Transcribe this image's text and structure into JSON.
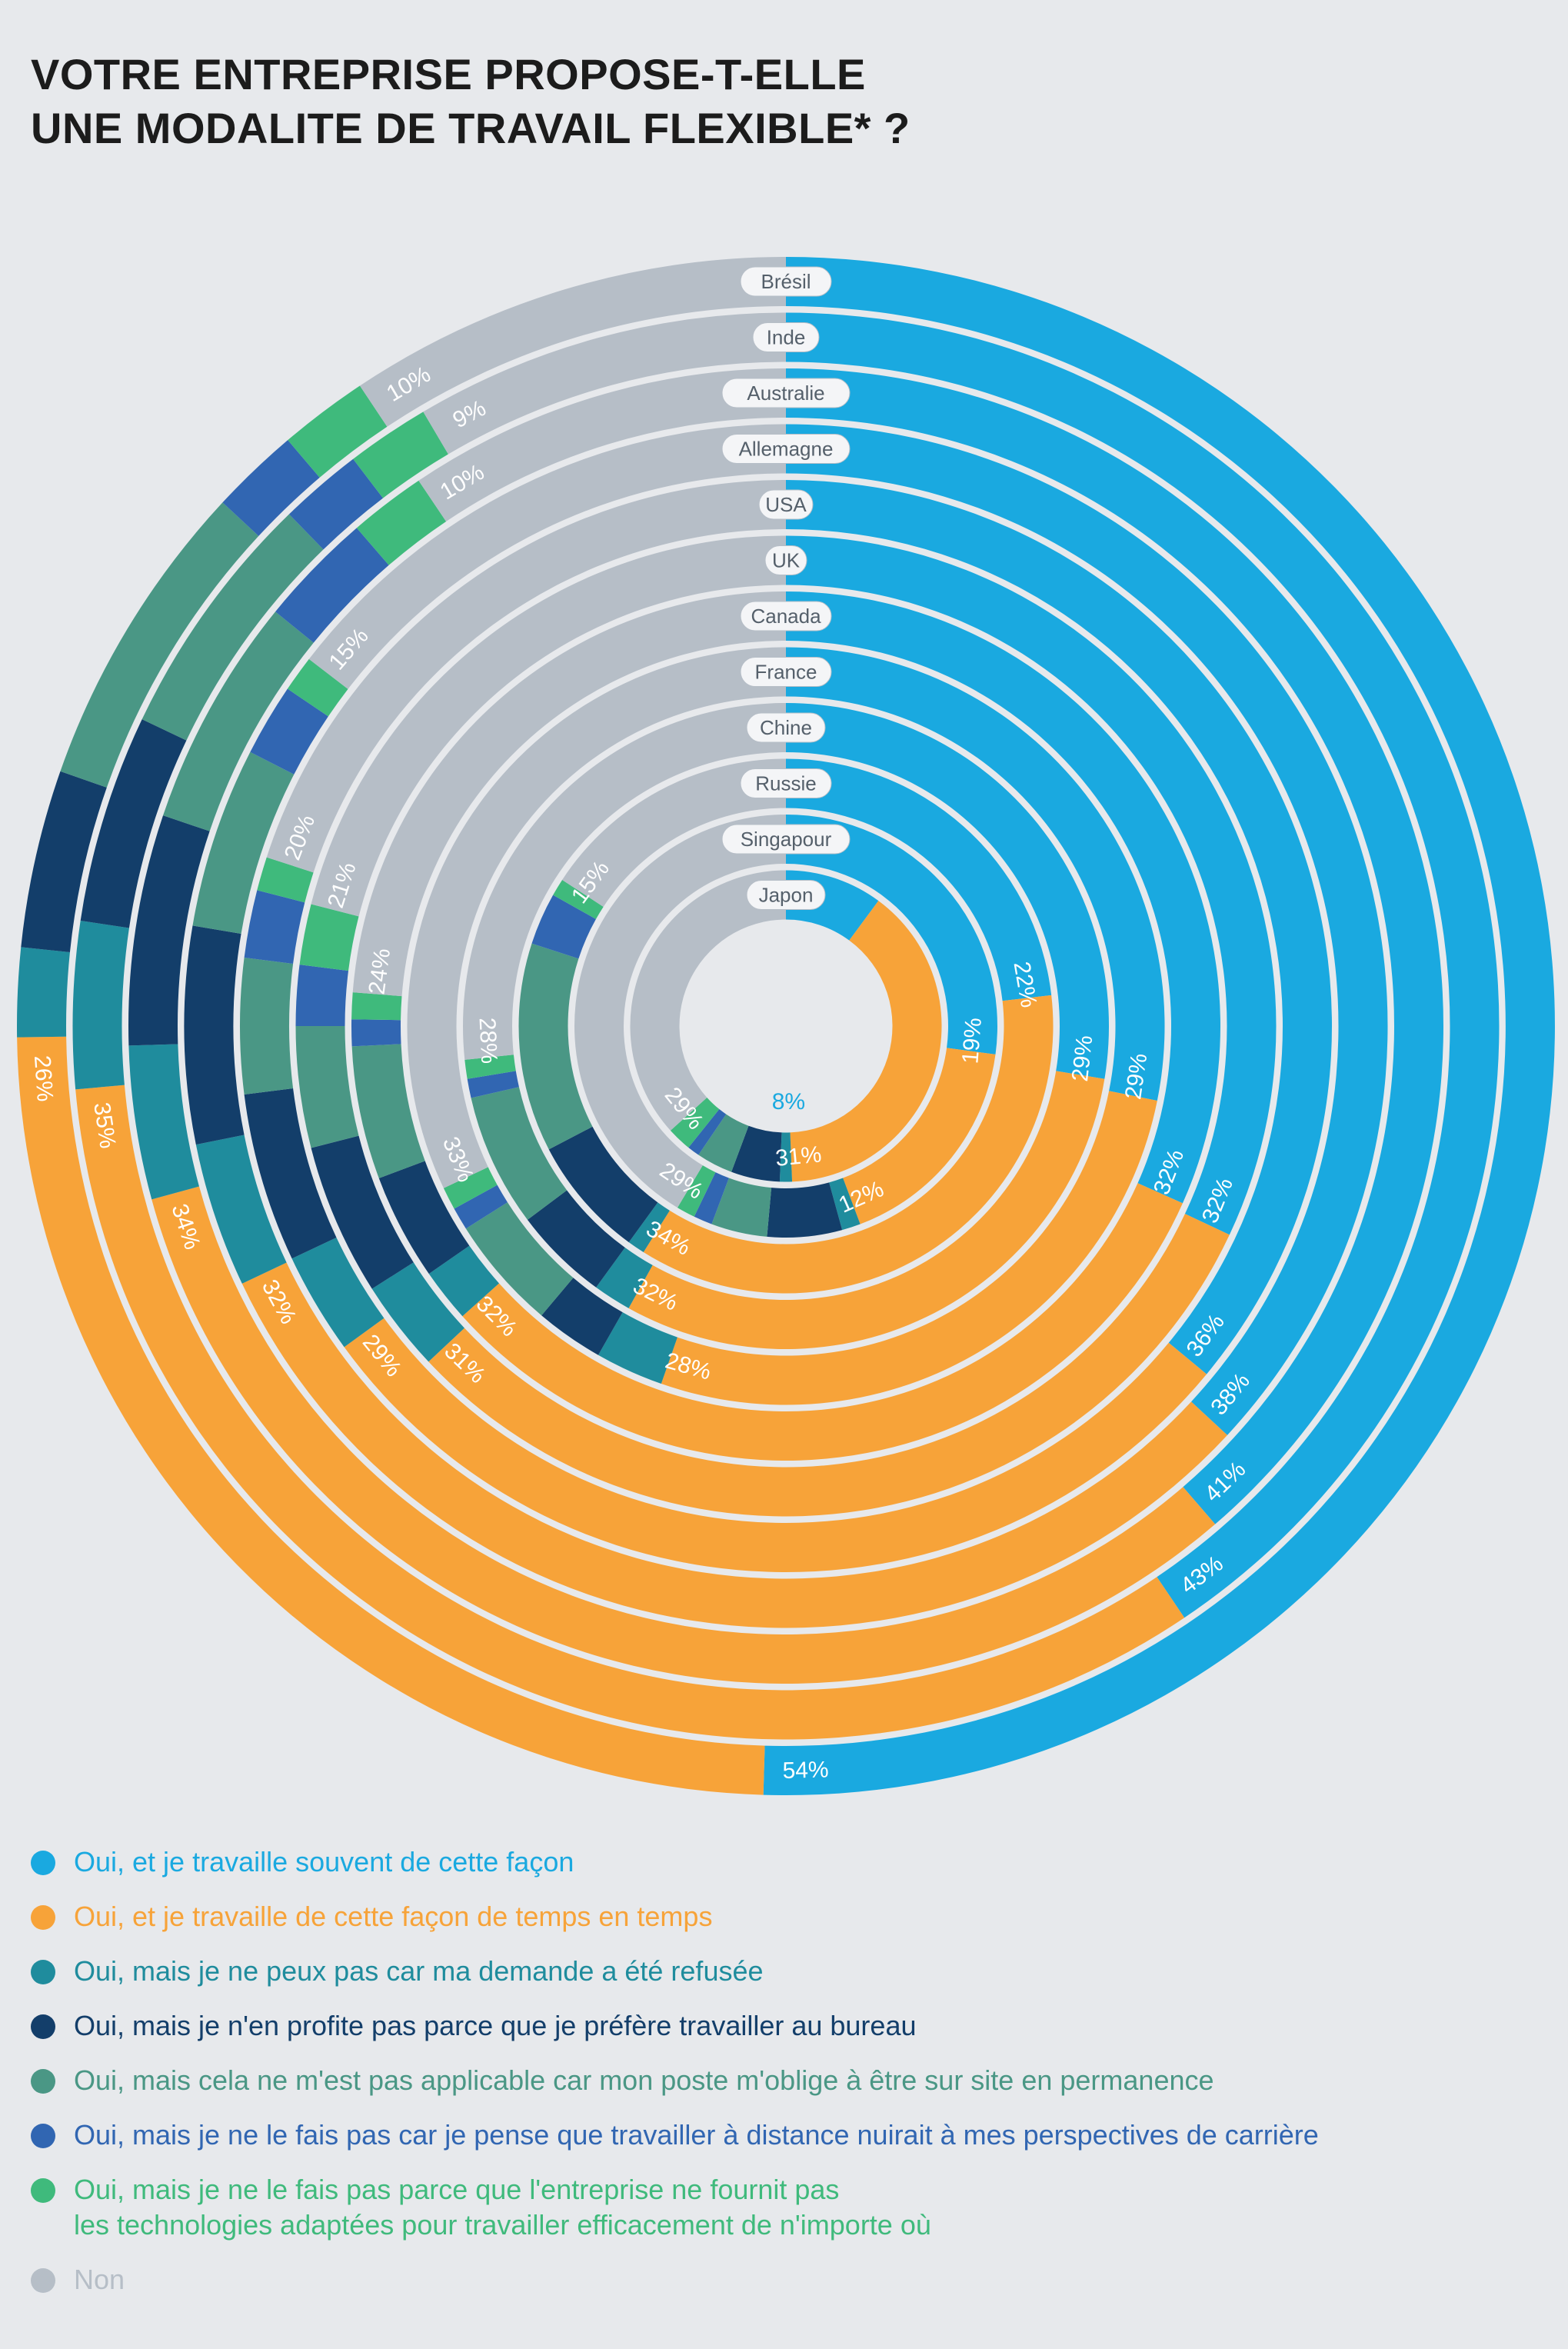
{
  "title": {
    "line1": "VOTRE ENTREPRISE PROPOSE-T-ELLE",
    "line2": "UNE MODALITE DE TRAVAIL FLEXIBLE*  ?"
  },
  "chart_data": {
    "type": "radial-stacked-bar",
    "categories": [
      "Brésil",
      "Inde",
      "Australie",
      "Allemagne",
      "USA",
      "UK",
      "Canada",
      "France",
      "Chine",
      "Russie",
      "Singapour",
      "Japon"
    ],
    "series": [
      {
        "name": "Oui, et je travaille souvent de cette façon",
        "color": "#1aa9e0",
        "values": [
          54,
          43,
          41,
          38,
          36,
          32,
          32,
          29,
          29,
          22,
          19,
          8
        ]
      },
      {
        "name": "Oui, et je travaille de cette façon de temps en temps",
        "color": "#f7a339",
        "values": [
          26,
          35,
          34,
          32,
          29,
          31,
          32,
          28,
          32,
          34,
          12,
          31
        ]
      },
      {
        "name": "Oui, mais je ne peux pas car ma demande a été refusée",
        "color": "#1f8c9d",
        "values": [
          2,
          4,
          4,
          4,
          3,
          3,
          2,
          3,
          2,
          1,
          1,
          1
        ]
      },
      {
        "name": "Oui, mais je n'en profite pas parce que je préfère travailler au bureau",
        "color": "#133e6a",
        "values": [
          4,
          5,
          6,
          6,
          5,
          5,
          4,
          3,
          5,
          7,
          4,
          4
        ]
      },
      {
        "name": "Oui, mais cela ne m'est pas applicable car mon poste m'oblige à être sur site en permanence",
        "color": "#4a9785",
        "values": [
          7,
          6,
          6,
          5,
          4,
          4,
          5,
          5,
          7,
          12,
          3,
          3
        ]
      },
      {
        "name": "Oui, mais je ne le fais pas car je pense que travailler à distance nuirait à mes perspectives de carrière",
        "color": "#3166b2",
        "values": [
          2,
          2,
          3,
          2,
          2,
          2,
          1,
          1,
          1,
          3,
          1,
          1
        ]
      },
      {
        "name": "Oui, mais je ne le fais pas parce que l'entreprise ne fournit pas les technologies adaptées pour travailler efficacement de n'importe où",
        "color": "#3fba7c",
        "values": [
          2,
          2,
          2,
          1,
          1,
          2,
          1,
          1,
          1,
          1,
          1,
          2
        ]
      },
      {
        "name": "Non",
        "color": "#b6bec7",
        "values": [
          10,
          9,
          10,
          15,
          20,
          21,
          24,
          33,
          28,
          15,
          29,
          29
        ]
      }
    ]
  },
  "legend": [
    {
      "lines": [
        "Oui, et je travaille souvent de cette façon"
      ],
      "color": "#1aa9e0"
    },
    {
      "lines": [
        "Oui, et je travaille de cette façon de temps en temps"
      ],
      "color": "#f7a339"
    },
    {
      "lines": [
        "Oui, mais je ne peux pas car ma demande a été refusée"
      ],
      "color": "#1f8c9d"
    },
    {
      "lines": [
        "Oui, mais je n'en profite pas parce que je préfère travailler au bureau"
      ],
      "color": "#133e6a"
    },
    {
      "lines": [
        "Oui, mais cela ne m'est pas applicable car mon poste m'oblige à être sur site en permanence"
      ],
      "color": "#4a9785"
    },
    {
      "lines": [
        "Oui, mais je ne le fais pas car je pense que travailler à distance nuirait à mes perspectives de carrière"
      ],
      "color": "#3166b2"
    },
    {
      "lines": [
        "Oui, mais je ne le fais pas parce que l'entreprise ne fournit pas",
        "les technologies adaptées pour travailler efficacement de n'importe où"
      ],
      "color": "#3fba7c"
    },
    {
      "lines": [
        "Non"
      ],
      "color": "#b6bec7"
    }
  ]
}
